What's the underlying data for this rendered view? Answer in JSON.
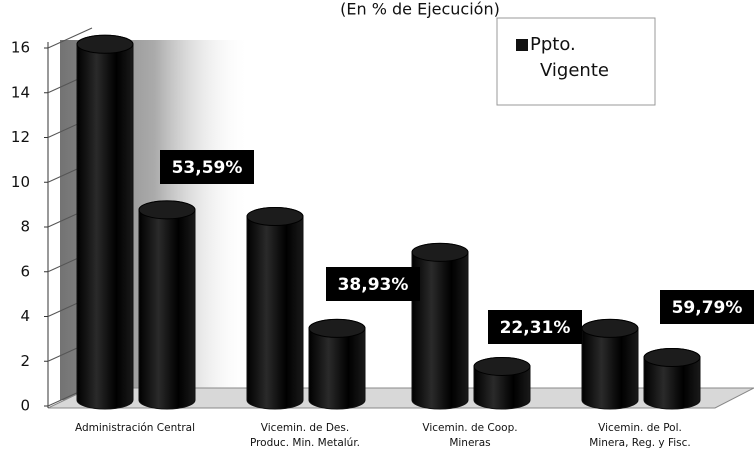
{
  "chart_data": {
    "type": "bar3d",
    "title": "(En % de Ejecución)",
    "categories": [
      [
        "Administración Central"
      ],
      [
        "Vicemin. de Des.",
        "Produc. Min. Metalúr."
      ],
      [
        "Vicemin. de Coop.",
        "Mineras"
      ],
      [
        "Vicemin. de Pol.",
        "Minera, Reg. y Fisc."
      ]
    ],
    "series": [
      {
        "name": [
          "Ppto.",
          "Vigente"
        ],
        "color": "#111111",
        "values": [
          15.9,
          8.2,
          6.6,
          3.2
        ]
      },
      {
        "color": "#111111",
        "values": [
          8.5,
          3.2,
          1.5,
          1.9
        ]
      }
    ],
    "annotations": [
      "53,59%",
      "38,93%",
      "22,31%",
      "59,79%"
    ],
    "ylim": [
      0,
      16
    ],
    "yticks": [
      0,
      2,
      4,
      6,
      8,
      10,
      12,
      14,
      16
    ],
    "legend": "top-right"
  }
}
